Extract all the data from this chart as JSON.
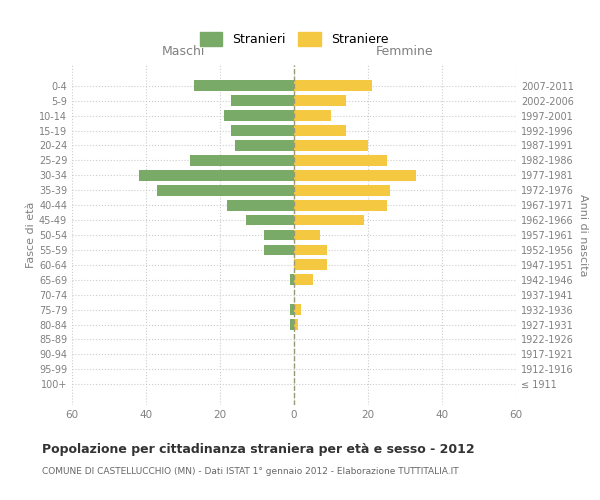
{
  "age_groups": [
    "100+",
    "95-99",
    "90-94",
    "85-89",
    "80-84",
    "75-79",
    "70-74",
    "65-69",
    "60-64",
    "55-59",
    "50-54",
    "45-49",
    "40-44",
    "35-39",
    "30-34",
    "25-29",
    "20-24",
    "15-19",
    "10-14",
    "5-9",
    "0-4"
  ],
  "birth_years": [
    "≤ 1911",
    "1912-1916",
    "1917-1921",
    "1922-1926",
    "1927-1931",
    "1932-1936",
    "1937-1941",
    "1942-1946",
    "1947-1951",
    "1952-1956",
    "1957-1961",
    "1962-1966",
    "1967-1971",
    "1972-1976",
    "1977-1981",
    "1982-1986",
    "1987-1991",
    "1992-1996",
    "1997-2001",
    "2002-2006",
    "2007-2011"
  ],
  "males": [
    0,
    0,
    0,
    0,
    1,
    1,
    0,
    1,
    0,
    8,
    8,
    13,
    18,
    37,
    42,
    28,
    16,
    17,
    19,
    17,
    27
  ],
  "females": [
    0,
    0,
    0,
    0,
    1,
    2,
    0,
    5,
    9,
    9,
    7,
    19,
    25,
    26,
    33,
    25,
    20,
    14,
    10,
    14,
    21
  ],
  "male_color": "#7aaa67",
  "female_color": "#f5c842",
  "bar_height": 0.72,
  "title": "Popolazione per cittadinanza straniera per età e sesso - 2012",
  "subtitle": "COMUNE DI CASTELLUCCHIO (MN) - Dati ISTAT 1° gennaio 2012 - Elaborazione TUTTITALIA.IT",
  "header_left": "Maschi",
  "header_right": "Femmine",
  "ylabel_left": "Fasce di età",
  "ylabel_right": "Anni di nascita",
  "legend_stranieri": "Stranieri",
  "legend_straniere": "Straniere",
  "xlim": 60,
  "background_color": "#ffffff",
  "grid_color": "#cccccc",
  "axis_label_color": "#808080",
  "tick_color": "#808080",
  "dashed_line_color": "#999977"
}
